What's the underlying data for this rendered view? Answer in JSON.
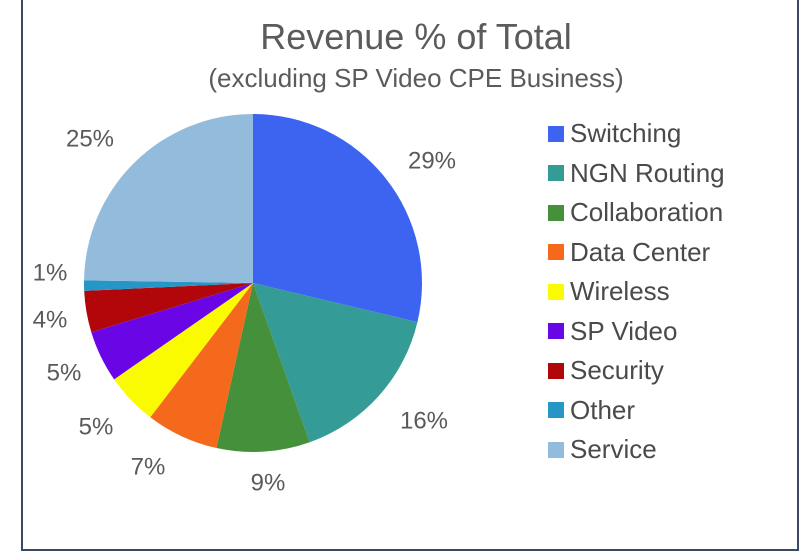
{
  "chart_data": {
    "type": "pie",
    "title": "Revenue % of Total",
    "subtitle": "(excluding SP Video CPE Business)",
    "slices": [
      {
        "label": "Switching",
        "value": 29,
        "text": "29%",
        "color": "#3c64f0"
      },
      {
        "label": "NGN Routing",
        "value": 16,
        "text": "16%",
        "color": "#349b97"
      },
      {
        "label": "Collaboration",
        "value": 9,
        "text": "9%",
        "color": "#45903a"
      },
      {
        "label": "Data Center",
        "value": 7,
        "text": "7%",
        "color": "#f5691c"
      },
      {
        "label": "Wireless",
        "value": 5,
        "text": "5%",
        "color": "#fafa00"
      },
      {
        "label": "SP Video",
        "value": 5,
        "text": "5%",
        "color": "#6a06e6"
      },
      {
        "label": "Security",
        "value": 4,
        "text": "4%",
        "color": "#b1070b"
      },
      {
        "label": "Other",
        "value": 1,
        "text": "1%",
        "color": "#2696c6"
      },
      {
        "label": "Service",
        "value": 25,
        "text": "25%",
        "color": "#93bcdc"
      }
    ],
    "legend_position": "right"
  }
}
